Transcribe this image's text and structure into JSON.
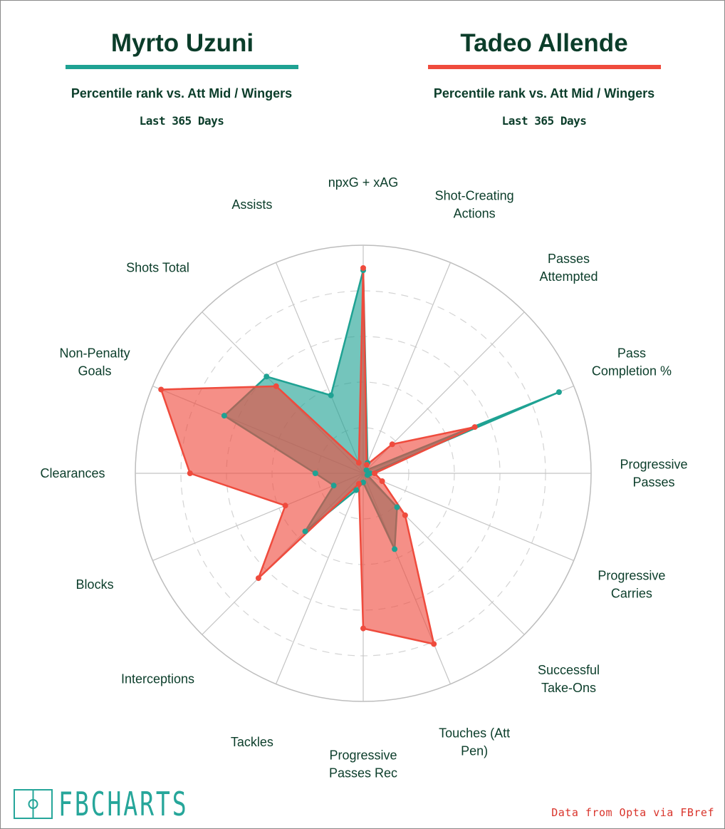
{
  "header": {
    "left": {
      "name": "Myrto Uzuni",
      "subtitle": "Percentile rank vs. Att Mid / Wingers",
      "period": "Last 365 Days"
    },
    "right": {
      "name": "Tadeo Allende",
      "subtitle": "Percentile rank vs. Att Mid / Wingers",
      "period": "Last 365 Days"
    }
  },
  "chart_data": {
    "type": "radar",
    "rmax": 100,
    "rings": [
      20,
      40,
      60,
      80,
      100
    ],
    "categories": [
      "npxG + xAG",
      "Shot-Creating\nActions",
      "Passes\nAttempted",
      "Pass\nCompletion %",
      "Progressive\nPasses",
      "Progressive\nCarries",
      "Successful\nTake-Ons",
      "Touches (Att\nPen)",
      "Progressive\nPasses Rec",
      "Tackles",
      "Interceptions",
      "Blocks",
      "Clearances",
      "Non-Penalty\nGoals",
      "Shots Total",
      "Assists"
    ],
    "series": [
      {
        "name": "Myrto Uzuni",
        "color": "#1fa293",
        "values": [
          89,
          5,
          2,
          93,
          3,
          2,
          21,
          36,
          4,
          8,
          36,
          14,
          21,
          66,
          60,
          37
        ]
      },
      {
        "name": "Tadeo Allende",
        "color": "#ef4b3d",
        "values": [
          90,
          4,
          18,
          53,
          5,
          9,
          26,
          81,
          68,
          5,
          65,
          37,
          76,
          96,
          54,
          5
        ]
      }
    ]
  },
  "footer": {
    "logo": "FBCHARTS",
    "source": "Data from Opta via FBref"
  },
  "colors": {
    "teal": "#1fa293",
    "red": "#ef4b3d",
    "title": "#0b3d2a"
  }
}
